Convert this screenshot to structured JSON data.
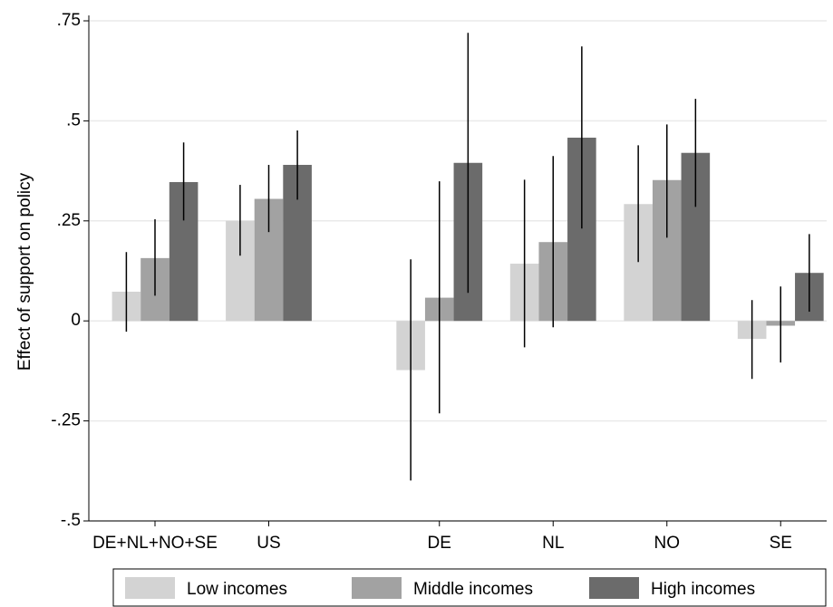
{
  "chart_data": {
    "type": "bar",
    "y_label": "Effect of support on policy",
    "categories": [
      "DE+NL+NO+SE",
      "US",
      "DE",
      "NL",
      "NO",
      "SE"
    ],
    "series": [
      {
        "name": "Low incomes",
        "color": "#d3d3d3",
        "values": [
          0.073,
          0.25,
          -0.123,
          0.143,
          0.292,
          -0.045
        ],
        "ci_low": [
          -0.027,
          0.163,
          -0.399,
          -0.066,
          0.147,
          -0.145
        ],
        "ci_high": [
          0.172,
          0.34,
          0.154,
          0.353,
          0.439,
          0.052
        ]
      },
      {
        "name": "Middle incomes",
        "color": "#a2a2a2",
        "values": [
          0.157,
          0.305,
          0.058,
          0.197,
          0.352,
          -0.012
        ],
        "ci_low": [
          0.063,
          0.222,
          -0.231,
          -0.016,
          0.208,
          -0.104
        ],
        "ci_high": [
          0.254,
          0.39,
          0.349,
          0.412,
          0.491,
          0.086
        ]
      },
      {
        "name": "High incomes",
        "color": "#6b6b6b",
        "values": [
          0.347,
          0.39,
          0.395,
          0.458,
          0.42,
          0.12
        ],
        "ci_low": [
          0.251,
          0.303,
          0.07,
          0.231,
          0.285,
          0.023
        ],
        "ci_high": [
          0.446,
          0.476,
          0.72,
          0.686,
          0.555,
          0.217
        ]
      }
    ],
    "ylim": [
      -0.5,
      0.75
    ],
    "yticks": [
      {
        "value": -0.5,
        "label": "-.5"
      },
      {
        "value": -0.25,
        "label": "-.25"
      },
      0,
      {
        "value": 0.25,
        "label": ".25"
      },
      {
        "value": 0.5,
        "label": ".5"
      },
      {
        "value": 0.75,
        "label": ".75"
      }
    ],
    "grid": true
  }
}
